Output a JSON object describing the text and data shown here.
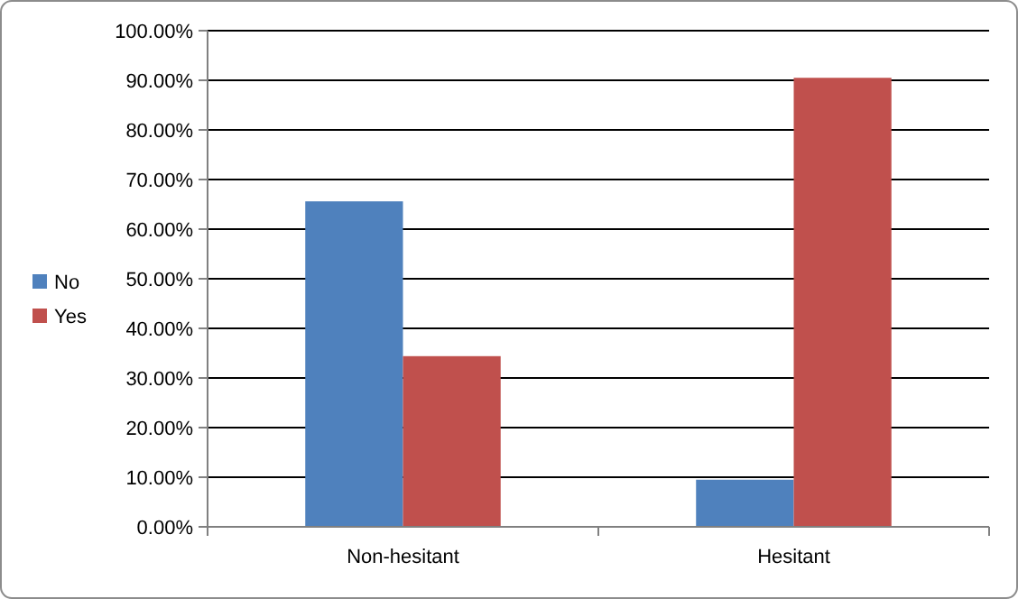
{
  "chart_data": {
    "type": "bar",
    "categories": [
      "Non-hesitant",
      "Hesitant"
    ],
    "series": [
      {
        "name": "No",
        "color": "#4f81bd",
        "values": [
          65.6,
          9.5
        ]
      },
      {
        "name": "Yes",
        "color": "#c0504d",
        "values": [
          34.4,
          90.5
        ]
      }
    ],
    "ylim": [
      0,
      100
    ],
    "yticks": [
      {
        "value": 0,
        "label": "0.00%"
      },
      {
        "value": 10,
        "label": "10.00%"
      },
      {
        "value": 20,
        "label": "20.00%"
      },
      {
        "value": 30,
        "label": "30.00%"
      },
      {
        "value": 40,
        "label": "40.00%"
      },
      {
        "value": 50,
        "label": "50.00%"
      },
      {
        "value": 60,
        "label": "60.00%"
      },
      {
        "value": 70,
        "label": "70.00%"
      },
      {
        "value": 80,
        "label": "80.00%"
      },
      {
        "value": 90,
        "label": "90.00%"
      },
      {
        "value": 100,
        "label": "100.00%"
      }
    ],
    "grid": "y",
    "legend": "left"
  }
}
